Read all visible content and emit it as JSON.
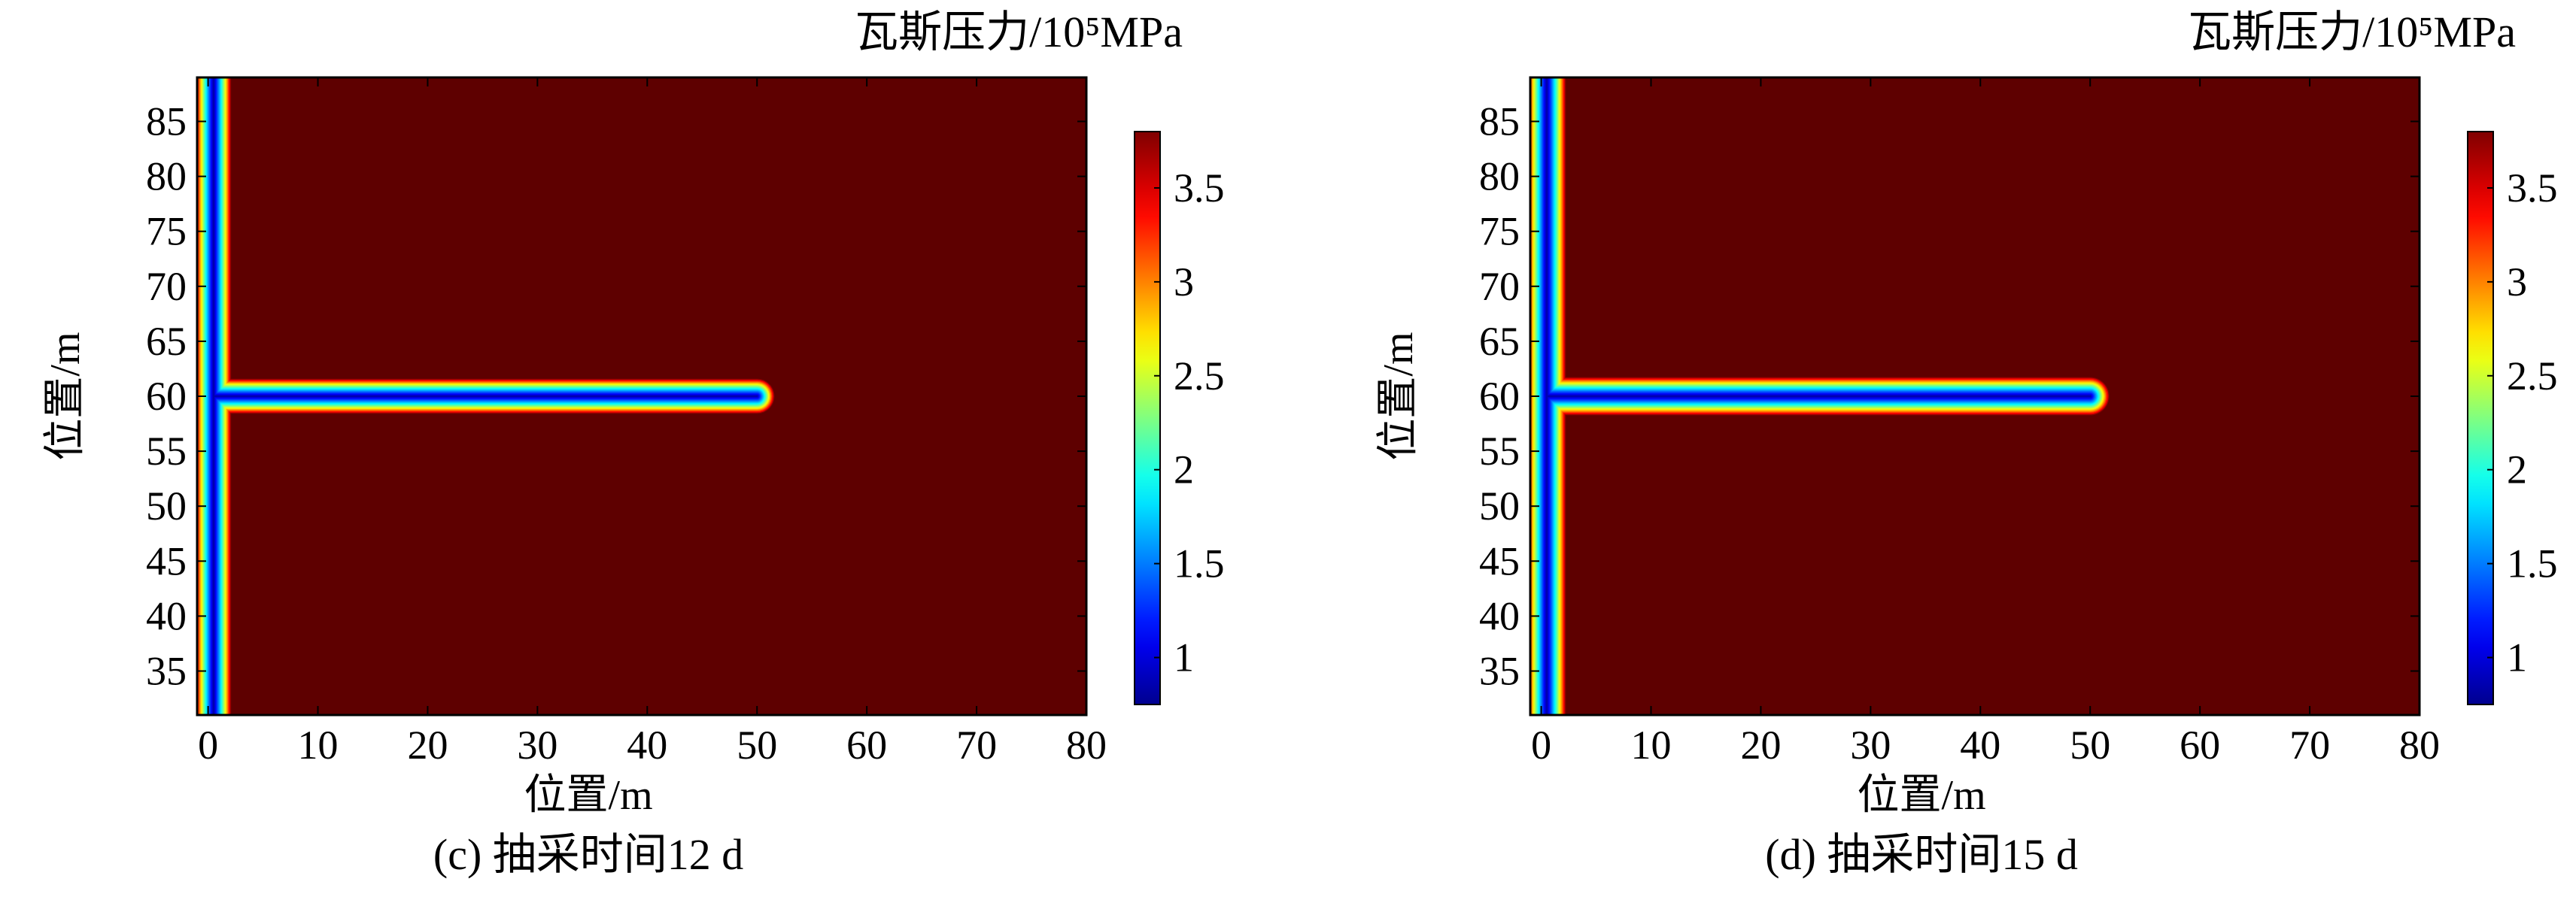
{
  "chart_data": [
    {
      "type": "heatmap",
      "caption": "(c) 抽采时间12 d",
      "xlabel": "位置/m",
      "ylabel": "位置/m",
      "colorbar_title": "瓦斯压力/10⁵MPa",
      "xlim": [
        -1,
        80
      ],
      "ylim": [
        31,
        89
      ],
      "xticks": [
        0,
        10,
        20,
        30,
        40,
        50,
        60,
        70,
        80
      ],
      "yticks": [
        35,
        40,
        45,
        50,
        55,
        60,
        65,
        70,
        75,
        80,
        85
      ],
      "colorbar_range": [
        0.75,
        3.8
      ],
      "colorbar_ticks": [
        1,
        1.5,
        2,
        2.5,
        3,
        3.5
      ],
      "colormap": "jet",
      "field": {
        "background_pressure": 3.8,
        "min_pressure": 0.75,
        "vertical_borehole": {
          "x": 0.5,
          "y_from": 31,
          "y_to": 89
        },
        "horizontal_borehole": {
          "y": 60,
          "x_from": 0,
          "x_to": 50
        },
        "influence_radius_m": 1.6
      }
    },
    {
      "type": "heatmap",
      "caption": "(d) 抽采时间15 d",
      "xlabel": "位置/m",
      "ylabel": "位置/m",
      "colorbar_title": "瓦斯压力/10⁵MPa",
      "xlim": [
        -1,
        80
      ],
      "ylim": [
        31,
        89
      ],
      "xticks": [
        0,
        10,
        20,
        30,
        40,
        50,
        60,
        70,
        80
      ],
      "yticks": [
        35,
        40,
        45,
        50,
        55,
        60,
        65,
        70,
        75,
        80,
        85
      ],
      "colorbar_range": [
        0.75,
        3.8
      ],
      "colorbar_ticks": [
        1,
        1.5,
        2,
        2.5,
        3,
        3.5
      ],
      "colormap": "jet",
      "field": {
        "background_pressure": 3.8,
        "min_pressure": 0.75,
        "vertical_borehole": {
          "x": 0.5,
          "y_from": 31,
          "y_to": 89
        },
        "horizontal_borehole": {
          "y": 60,
          "x_from": 0,
          "x_to": 50
        },
        "influence_radius_m": 1.75
      }
    }
  ],
  "colors": {
    "background": "#5e0000",
    "jet_stops": [
      "#00008f",
      "#0000ff",
      "#00ffff",
      "#ffff00",
      "#ff0000",
      "#800000"
    ]
  }
}
